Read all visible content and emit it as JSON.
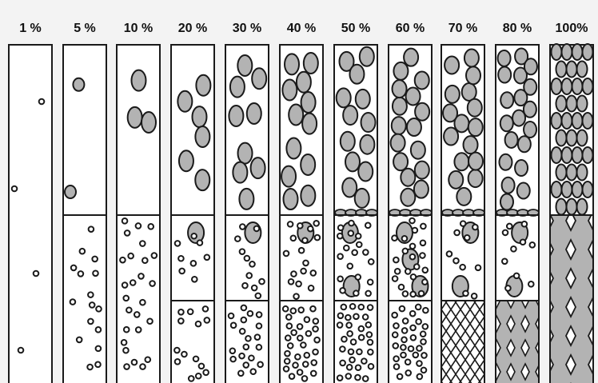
{
  "colors": {
    "background": "#f3f3f3",
    "column_fill": "#ffffff",
    "particle_fill": "#b3b3b3",
    "solid_fill": "#b3b3b3",
    "outline": "#1a1a1a"
  },
  "columns": [
    {
      "label": "1 %",
      "zones": [
        "sparse-fine"
      ]
    },
    {
      "label": "5 %",
      "zones": [
        "coarse-particles",
        "fine-particles"
      ]
    },
    {
      "label": "10 %",
      "zones": [
        "coarse-particles",
        "fine-particles"
      ]
    },
    {
      "label": "20 %",
      "zones": [
        "coarse-particles",
        "mixed-particles",
        "fine-particles"
      ]
    },
    {
      "label": "30 %",
      "zones": [
        "coarse-particles",
        "mixed-particles",
        "fine-particles"
      ]
    },
    {
      "label": "40 %",
      "zones": [
        "coarse-particles",
        "mixed-particles",
        "fine-particles"
      ]
    },
    {
      "label": "50 %",
      "zones": [
        "coarse-particles",
        "mixed-particles",
        "fine-particles"
      ]
    },
    {
      "label": "60 %",
      "zones": [
        "coarse-particles",
        "mixed-particles",
        "fine-particles"
      ]
    },
    {
      "label": "70 %",
      "zones": [
        "coarse-particles",
        "mixed-particles",
        "crosshatch"
      ]
    },
    {
      "label": "80 %",
      "zones": [
        "coarse-particles",
        "mixed-particles",
        "diamond-grid"
      ]
    },
    {
      "label": "100%",
      "zones": [
        "packed-coarse",
        "diamond-grid"
      ]
    }
  ]
}
